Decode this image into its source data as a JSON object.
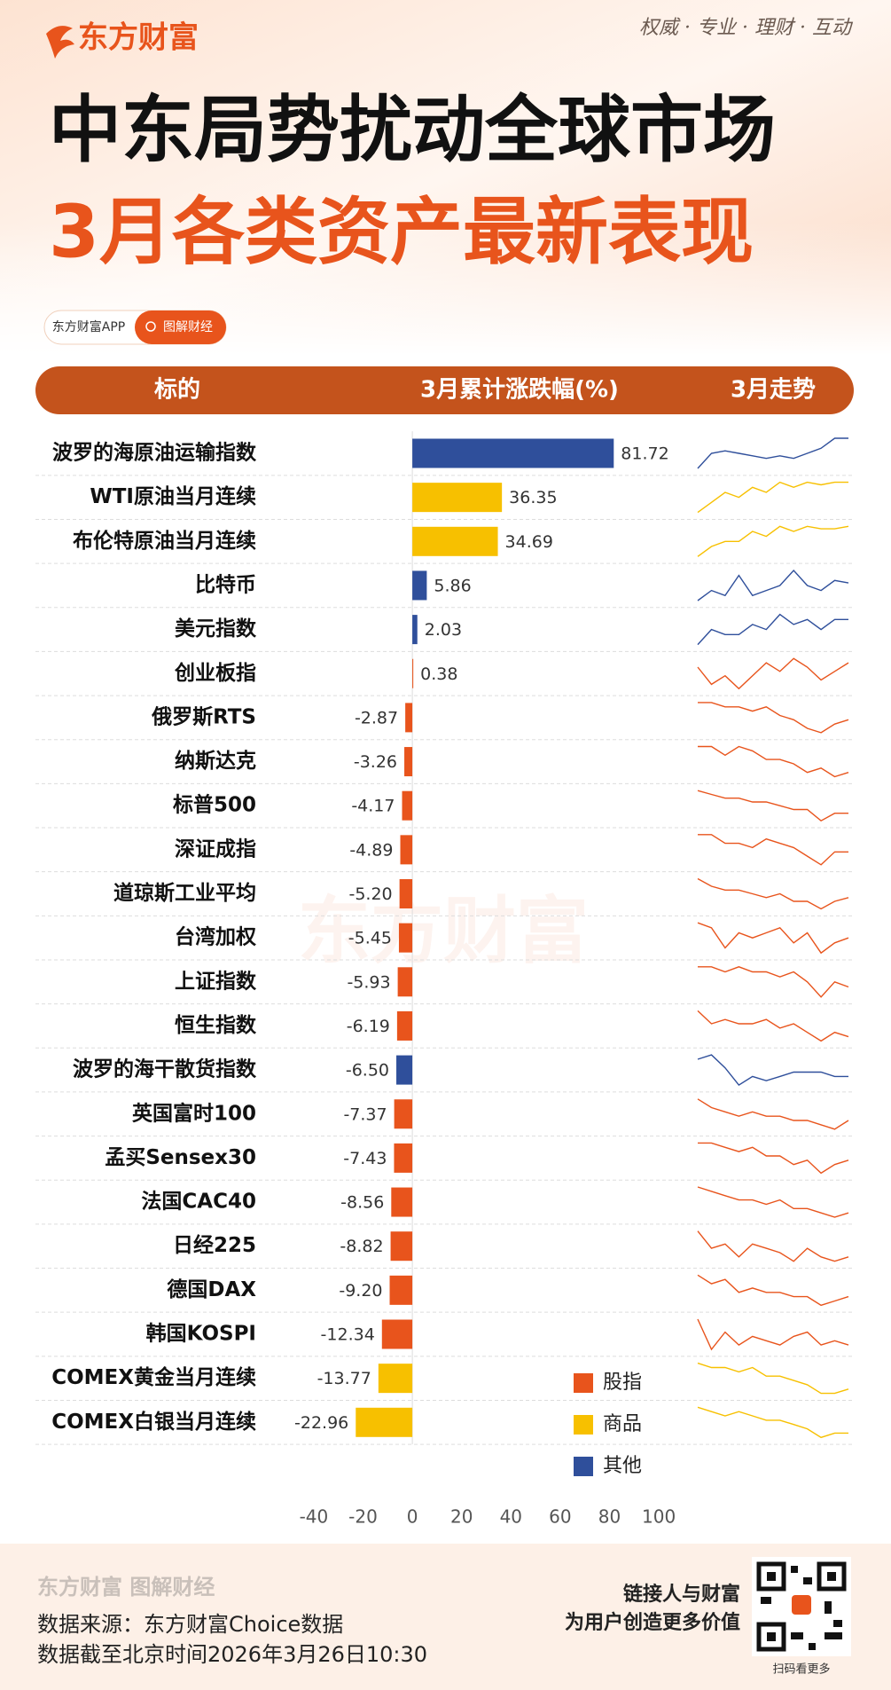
{
  "brand": "东方财富",
  "slogan": "权威 · 专业 · 理财 · 互动",
  "title": "中东局势扰动全球市场",
  "subtitle": "3月各类资产最新表现",
  "tag_app": "东方财富APP",
  "tag_topic": "图解财经",
  "chart_data": {
    "type": "bar",
    "orientation": "horizontal",
    "column_headers": [
      "标的",
      "3月累计涨跌幅(%)",
      "3月走势"
    ],
    "categories": [
      "波罗的海原油运输指数",
      "WTI原油当月连续",
      "布伦特原油当月连续",
      "比特币",
      "美元指数",
      "创业板指",
      "俄罗斯RTS",
      "纳斯达克",
      "标普500",
      "深证成指",
      "道琼斯工业平均",
      "台湾加权",
      "上证指数",
      "恒生指数",
      "波罗的海干散货指数",
      "英国富时100",
      "孟买Sensex30",
      "法国CAC40",
      "日经225",
      "德国DAX",
      "韩国KOSPI",
      "COMEX黄金当月连续",
      "COMEX白银当月连续"
    ],
    "series": [
      {
        "name": "股指",
        "color": "#e8541c",
        "values": [
          null,
          null,
          null,
          null,
          null,
          0.38,
          -2.87,
          -3.26,
          -4.17,
          -4.89,
          -5.2,
          -5.45,
          -5.93,
          -6.19,
          null,
          -7.37,
          -7.43,
          -8.56,
          -8.82,
          -9.2,
          -12.34,
          null,
          null
        ],
        "value_labels": [
          null,
          null,
          null,
          null,
          null,
          "0.38",
          "-2.87",
          "-3.26",
          "-4.17",
          "-4.89",
          "-5.20",
          "-5.45",
          "-5.93",
          "-6.19",
          null,
          "-7.37",
          "-7.43",
          "-8.56",
          "-8.82",
          "-9.20",
          "-12.34",
          null,
          null
        ]
      },
      {
        "name": "商品",
        "color": "#f7c000",
        "values": [
          null,
          36.35,
          34.69,
          null,
          null,
          null,
          null,
          null,
          null,
          null,
          null,
          null,
          null,
          null,
          null,
          null,
          null,
          null,
          null,
          null,
          null,
          -13.77,
          -22.96
        ],
        "value_labels": [
          null,
          "36.35",
          "34.69",
          null,
          null,
          null,
          null,
          null,
          null,
          null,
          null,
          null,
          null,
          null,
          null,
          null,
          null,
          null,
          null,
          null,
          null,
          "-13.77",
          "-22.96"
        ]
      },
      {
        "name": "其他",
        "color": "#2f4f9b",
        "values": [
          81.72,
          null,
          null,
          5.86,
          2.03,
          null,
          null,
          null,
          null,
          null,
          null,
          null,
          null,
          null,
          -6.5,
          null,
          null,
          null,
          null,
          null,
          null,
          null,
          null
        ],
        "value_labels": [
          "81.72",
          null,
          null,
          "5.86",
          "2.03",
          null,
          null,
          null,
          null,
          null,
          null,
          null,
          null,
          null,
          "-6.50",
          null,
          null,
          null,
          null,
          null,
          null,
          null,
          null
        ]
      }
    ],
    "trends": [
      [
        3,
        6,
        6.5,
        6,
        5.5,
        5,
        5.5,
        5,
        6,
        7,
        9,
        9
      ],
      [
        2,
        4,
        6,
        5,
        7,
        6,
        8,
        7,
        8,
        7.5,
        8,
        8
      ],
      [
        2,
        4,
        5,
        5,
        7,
        6,
        8,
        7,
        8,
        7.5,
        7.5,
        8
      ],
      [
        3,
        5,
        4,
        8,
        4,
        5,
        6,
        9,
        6,
        5,
        7,
        6.5
      ],
      [
        2,
        5,
        4,
        4,
        6,
        5,
        8,
        6,
        7,
        5,
        7,
        7
      ],
      [
        7,
        3,
        5,
        2,
        5,
        8,
        6,
        9,
        7,
        4,
        6,
        8
      ],
      [
        9,
        9,
        8,
        8,
        7,
        8,
        6,
        5,
        3,
        2,
        4,
        5
      ],
      [
        8,
        8,
        6,
        8,
        7,
        5,
        5,
        4,
        2,
        3,
        1,
        2
      ],
      [
        9,
        8,
        7,
        7,
        6,
        6,
        5,
        4,
        4,
        1,
        3,
        3
      ],
      [
        8,
        8,
        6,
        6,
        5,
        7,
        6,
        5,
        3,
        1,
        4,
        4
      ],
      [
        9,
        7,
        6,
        6,
        5,
        4,
        5,
        3,
        3,
        1,
        3,
        4
      ],
      [
        8,
        7,
        3,
        6,
        5,
        6,
        7,
        4,
        6,
        2,
        4,
        5
      ],
      [
        8,
        8,
        7,
        8,
        7,
        7,
        6,
        7,
        5,
        2,
        5,
        4
      ],
      [
        9,
        6,
        7,
        6,
        6,
        7,
        5,
        6,
        4,
        2,
        4,
        3
      ],
      [
        8,
        9,
        6,
        2,
        4,
        3,
        4,
        5,
        5,
        5,
        4,
        4
      ],
      [
        9,
        7,
        6,
        5,
        6,
        5,
        5,
        4,
        4,
        3,
        2,
        4
      ],
      [
        9,
        9,
        8,
        7,
        8,
        6,
        6,
        4,
        5,
        2,
        4,
        5
      ],
      [
        9,
        8,
        7,
        6,
        6,
        5,
        6,
        4,
        4,
        3,
        2,
        3
      ],
      [
        9,
        5,
        6,
        3,
        6,
        5,
        4,
        2,
        5,
        3,
        2,
        3
      ],
      [
        9,
        7,
        8,
        5,
        6,
        5,
        5,
        4,
        4,
        2,
        3,
        4
      ],
      [
        9,
        2,
        6,
        3,
        5,
        4,
        3,
        5,
        6,
        3,
        4,
        3
      ],
      [
        9,
        8,
        8,
        7,
        8,
        6,
        6,
        5,
        4,
        2,
        2,
        3
      ],
      [
        8,
        7,
        6,
        7,
        6,
        5,
        5,
        4,
        3,
        1,
        2,
        2
      ]
    ],
    "xlim": [
      -45,
      105
    ],
    "xticks": [
      -40,
      -20,
      0,
      20,
      40,
      60,
      80,
      100
    ],
    "legend": "bottom-right"
  },
  "watermark": "东方财富",
  "footer": {
    "brand": "东方财富 图解财经",
    "source": "数据来源：东方财富Choice数据",
    "date": "数据截至北京时间2026年3月26日10:30",
    "slogan1": "链接人与财富",
    "slogan2": "为用户创造更多价值",
    "qr_caption": "扫码看更多"
  }
}
